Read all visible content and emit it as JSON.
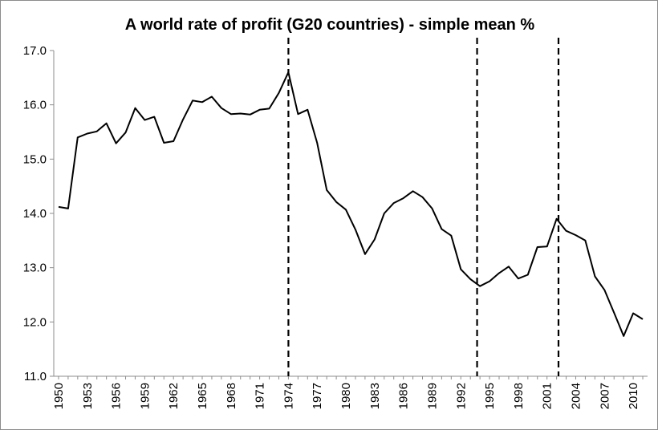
{
  "chart_data": {
    "type": "line",
    "title": "A world rate of profit (G20 countries) - simple mean %",
    "xlabel": "",
    "ylabel": "",
    "ylim": [
      11.0,
      17.0
    ],
    "yticks": [
      "11.0",
      "12.0",
      "13.0",
      "14.0",
      "15.0",
      "16.0",
      "17.0"
    ],
    "xlim": [
      1950,
      2011
    ],
    "xticks": [
      "1950",
      "1953",
      "1956",
      "1959",
      "1962",
      "1965",
      "1968",
      "1971",
      "1974",
      "1977",
      "1980",
      "1983",
      "1986",
      "1989",
      "1992",
      "1995",
      "1998",
      "2001",
      "2004",
      "2007",
      "2010"
    ],
    "grid": false,
    "legend": "none",
    "series": [
      {
        "x": [
          1950,
          1951,
          1952,
          1953,
          1954,
          1955,
          1956,
          1957,
          1958,
          1959,
          1960,
          1961,
          1962,
          1963,
          1964,
          1965,
          1966,
          1967,
          1968,
          1969,
          1970,
          1971,
          1972,
          1973,
          1974,
          1975,
          1976,
          1977,
          1978,
          1979,
          1980,
          1981,
          1982,
          1983,
          1984,
          1985,
          1986,
          1987,
          1988,
          1989,
          1990,
          1991,
          1992,
          1993,
          1994,
          1995,
          1996,
          1997,
          1998,
          1999,
          2000,
          2001,
          2002,
          2003,
          2004,
          2005,
          2006,
          2007,
          2008,
          2009,
          2010,
          2011
        ],
        "values": [
          14.12,
          14.09,
          15.4,
          15.47,
          15.51,
          15.66,
          15.29,
          15.49,
          15.94,
          15.72,
          15.78,
          15.3,
          15.33,
          15.73,
          16.08,
          16.05,
          16.15,
          15.94,
          15.83,
          15.84,
          15.82,
          15.91,
          15.93,
          16.22,
          16.6,
          15.83,
          15.91,
          15.3,
          14.43,
          14.21,
          14.07,
          13.7,
          13.25,
          13.52,
          14.0,
          14.19,
          14.28,
          14.41,
          14.3,
          14.09,
          13.71,
          13.59,
          12.97,
          12.79,
          12.66,
          12.75,
          12.9,
          13.02,
          12.8,
          12.87,
          13.38,
          13.39,
          13.9,
          13.68,
          13.6,
          13.5,
          12.84,
          12.59,
          12.17,
          11.74,
          12.16,
          12.05
        ]
      }
    ],
    "vertical_markers": [
      1974,
      1993.7,
      2002.2
    ]
  }
}
